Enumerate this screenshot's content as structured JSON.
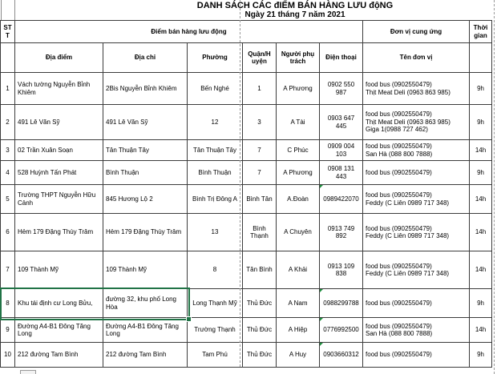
{
  "title": {
    "line1": "DANH SÁCH CÁC đIỂM BÁN HÀNG LƯU độNG",
    "line2": "Ngày 21 tháng 7 năm 2021"
  },
  "table": {
    "header_row1": {
      "stt": "STT",
      "group_sales": "Điểm bán hàng lưu động",
      "group_supplier": "Đơn vị cung ứng",
      "time": "Thời gian"
    },
    "header_row2": {
      "location": "Địa điểm",
      "address": "Địa chỉ",
      "ward": "Phường",
      "district": "Quận/H uyện",
      "manager": "Người phụ trách",
      "phone": "Điện thoại",
      "unit_name": "Tên đơn vị"
    },
    "rows": [
      {
        "stt": "1",
        "location": "Vách tường Nguyễn Bỉnh Khiêm",
        "address": "2Bis Nguyễn Bỉnh Khiêm",
        "ward": "Bến Nghé",
        "district": "1",
        "manager": "A Phương",
        "phone": "0902 550 987",
        "units": "food bus (0902550479)\nThịt Meat Deli (0963 863 985)",
        "time": "9h",
        "text_marker": false
      },
      {
        "stt": "2",
        "location": "491 Lê Văn Sỹ",
        "address": "491 Lê Văn Sỹ",
        "ward": "12",
        "district": "3",
        "manager": "A Tài",
        "phone": "0903 647 445",
        "units": "food bus (0902550479)\nThịt Meat Deli (0963 863 985)\nGiga 1(0988 727 462)",
        "time": "9h",
        "text_marker": false
      },
      {
        "stt": "3",
        "location": "02 Trần Xuân Soạn",
        "address": "Tân Thuận Tây",
        "ward": "Tân Thuận Tây",
        "district": "7",
        "manager": "C Phúc",
        "phone": "0909 004 103",
        "units": "food bus (0902550479)\nSan Hà (088 800 7888)",
        "time": "14h",
        "text_marker": false
      },
      {
        "stt": "4",
        "location": "528 Huỳnh Tấn Phát",
        "address": "Bình Thuận",
        "ward": "Bình Thuận",
        "district": "7",
        "manager": "A Phương",
        "phone": "0908 131 443",
        "units": "food bus (0902550479)",
        "time": "9h",
        "text_marker": false
      },
      {
        "stt": "5",
        "location": "Trường THPT Nguyễn Hữu Cảnh",
        "address": "845 Hương Lộ 2",
        "ward": "Bình Trị Đông A",
        "district": "Bình Tân",
        "manager": "A.Đoàn",
        "phone": "0989422070",
        "units": "food bus (0902550479)\nFeddy (C Liên 0989 717 348)",
        "time": "14h",
        "text_marker": true
      },
      {
        "stt": "6",
        "location": "Hẻm 179 Đặng Thùy Trâm",
        "address": "Hẻm 179 Đặng Thùy Trâm",
        "ward": "13",
        "district": "Bình Thạnh",
        "manager": "A Chuyên",
        "phone": "0913 749 892",
        "units": "food bus (0902550479)\nFeddy (C Liên 0989 717 348)",
        "time": "14h",
        "text_marker": false
      },
      {
        "stt": "7",
        "location": "109 Thành Mỹ",
        "address": "109 Thành Mỹ",
        "ward": "8",
        "district": "Tân Bình",
        "manager": "A Khải",
        "phone": "0913 109 838",
        "units": "food bus (0902550479)\nFeddy (C Liên 0989 717 348)",
        "time": "14h",
        "text_marker": false
      },
      {
        "stt": "8",
        "location": "Khu tái định cư Long Bửu,",
        "address": "đường 32, khu phố Long Hòa",
        "ward": "Long Thạnh Mỹ",
        "district": "Thủ Đức",
        "manager": "A Nam",
        "phone": "0988299788",
        "units": "food bus (0902550479)",
        "time": "9h",
        "text_marker": true
      },
      {
        "stt": "9",
        "location": "Đường A4-B1 Đông Tăng Long",
        "address": "Đường A4-B1 Đông Tăng Long",
        "ward": "Trường Thạnh",
        "district": "Thủ Đức",
        "manager": "A Hiệp",
        "phone": "0776992500",
        "units": "food bus (0902550479)\nSan Hà (088 800 7888)",
        "time": "14h",
        "text_marker": true
      },
      {
        "stt": "10",
        "location": "212 đường Tam Bình",
        "address": "212 đường Tam Bình",
        "ward": "Tam Phú",
        "district": "Thủ Đức",
        "manager": "A Huy",
        "phone": "0903660312",
        "units": "food bus (0902550479)",
        "time": "9h",
        "text_marker": true
      }
    ]
  },
  "colors": {
    "selection_green": "#217346",
    "text_marker_green": "#1E8E3E",
    "page_break_gray": "#9a9a9a"
  }
}
